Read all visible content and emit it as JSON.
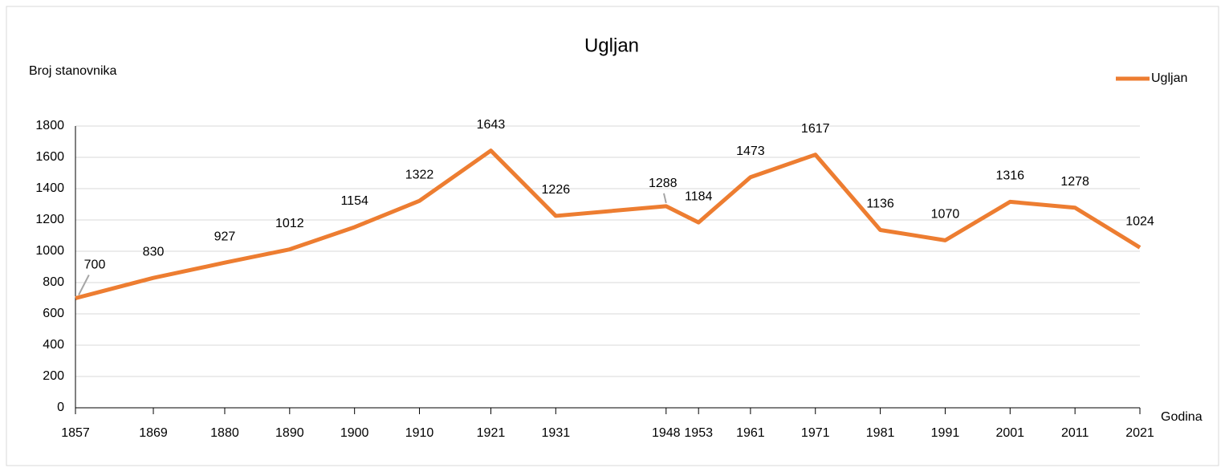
{
  "chart_data": {
    "type": "line",
    "title": "Ugljan",
    "y_label": "Broj stanovnika",
    "x_label": "Godina",
    "x": [
      1857,
      1869,
      1880,
      1890,
      1900,
      1910,
      1921,
      1931,
      1948,
      1953,
      1961,
      1971,
      1981,
      1991,
      2001,
      2011,
      2021
    ],
    "series": [
      {
        "name": "Ugljan",
        "color": "#ed7d31",
        "values": [
          700,
          830,
          927,
          1012,
          1154,
          1322,
          1643,
          1226,
          1288,
          1184,
          1473,
          1617,
          1136,
          1070,
          1316,
          1278,
          1024
        ]
      }
    ],
    "xlim": [
      1857,
      2021
    ],
    "xticks": [
      1857,
      1869,
      1880,
      1890,
      1900,
      1910,
      1921,
      1931,
      1948,
      1953,
      1961,
      1971,
      1981,
      1991,
      2001,
      2011,
      2021
    ],
    "ylim": [
      0,
      1800
    ],
    "yticks": [
      0,
      200,
      400,
      600,
      800,
      1000,
      1200,
      1400,
      1600,
      1800
    ],
    "grid": true,
    "legend": "top-right"
  }
}
